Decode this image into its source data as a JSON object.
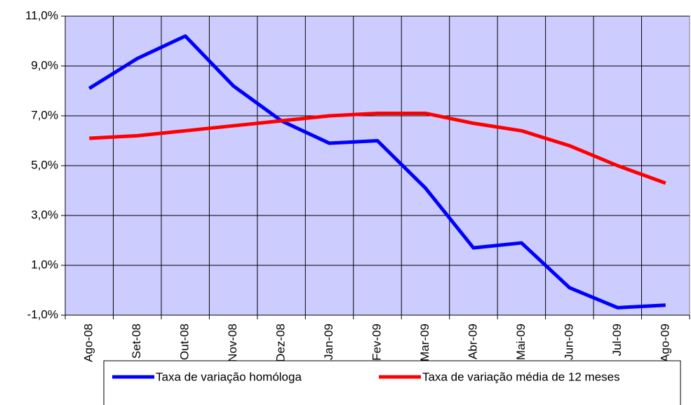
{
  "chart_data": {
    "type": "line",
    "categories": [
      "Ago-08",
      "Set-08",
      "Out-08",
      "Nov-08",
      "Dez-08",
      "Jan-09",
      "Fev-09",
      "Mar-09",
      "Abr-09",
      "Mai-09",
      "Jun-09",
      "Jul-09",
      "Ago-09"
    ],
    "series": [
      {
        "name": "Taxa de variação homóloga",
        "color": "#0000ff",
        "values": [
          8.1,
          9.3,
          10.2,
          8.2,
          6.8,
          5.9,
          6.0,
          4.1,
          1.7,
          1.9,
          0.1,
          -0.7,
          -0.6
        ]
      },
      {
        "name": "Taxa de variação média de 12 meses",
        "color": "#ff0000",
        "values": [
          6.1,
          6.2,
          6.4,
          6.6,
          6.8,
          7.0,
          7.1,
          7.1,
          6.7,
          6.4,
          5.8,
          5.0,
          4.3
        ]
      }
    ],
    "ylim": [
      -1,
      11
    ],
    "yticks": [
      {
        "value": -1,
        "label": "-1,0%"
      },
      {
        "value": 1,
        "label": "1,0%"
      },
      {
        "value": 3,
        "label": "3,0%"
      },
      {
        "value": 5,
        "label": "5,0%"
      },
      {
        "value": 7,
        "label": "7,0%"
      },
      {
        "value": 9,
        "label": "9,0%"
      },
      {
        "value": 11,
        "label": "11,0%"
      }
    ],
    "grid": true,
    "legend": "bottom",
    "plot_background": "#ccccff"
  }
}
